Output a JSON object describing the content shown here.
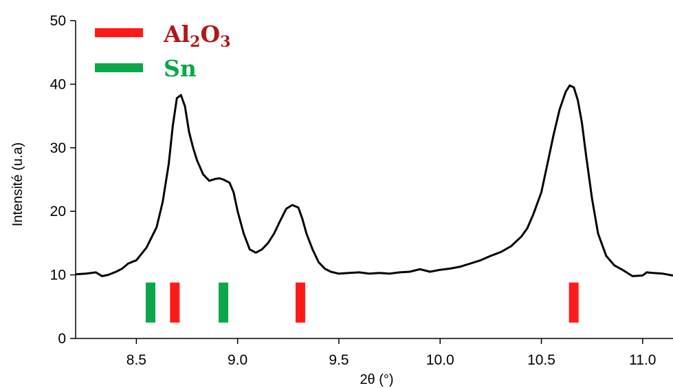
{
  "chart_data": {
    "type": "line",
    "xlabel": "2θ (°)",
    "ylabel": "Intensité (u.a)",
    "xlim": [
      8.2,
      11.15
    ],
    "ylim": [
      0,
      50
    ],
    "xticks": [
      8.5,
      9.0,
      9.5,
      10.0,
      10.5,
      11.0
    ],
    "xtick_labels": [
      "8.5",
      "9.0",
      "9.5",
      "10.0",
      "10.5",
      "11.0"
    ],
    "yticks": [
      0,
      10,
      20,
      30,
      40,
      50
    ],
    "ytick_labels": [
      "0",
      "10",
      "20",
      "30",
      "40",
      "50"
    ],
    "grid": false,
    "legend_position": "top-left",
    "legend": [
      {
        "label_main": "Al",
        "sub1": "2",
        "mid": "O",
        "sub2": "3",
        "color": "#ff1a1a",
        "text_color": "#b01818"
      },
      {
        "label_main": "Sn",
        "color": "#0aa84a",
        "text_color": "#0aa84a"
      }
    ],
    "series": [
      {
        "color": "#000000",
        "x": [
          8.2,
          8.25,
          8.3,
          8.33,
          8.36,
          8.4,
          8.43,
          8.46,
          8.5,
          8.55,
          8.6,
          8.63,
          8.66,
          8.68,
          8.7,
          8.72,
          8.74,
          8.76,
          8.78,
          8.8,
          8.83,
          8.86,
          8.89,
          8.91,
          8.93,
          8.96,
          8.98,
          9.0,
          9.03,
          9.06,
          9.09,
          9.12,
          9.15,
          9.18,
          9.21,
          9.24,
          9.27,
          9.3,
          9.32,
          9.34,
          9.37,
          9.4,
          9.43,
          9.46,
          9.5,
          9.55,
          9.6,
          9.65,
          9.7,
          9.75,
          9.8,
          9.85,
          9.9,
          9.95,
          10.0,
          10.05,
          10.1,
          10.15,
          10.2,
          10.25,
          10.3,
          10.35,
          10.4,
          10.43,
          10.46,
          10.5,
          10.53,
          10.56,
          10.59,
          10.62,
          10.64,
          10.66,
          10.68,
          10.7,
          10.72,
          10.75,
          10.78,
          10.82,
          10.86,
          10.9,
          10.95,
          11.0,
          11.02,
          11.05,
          11.1,
          11.15
        ],
        "y": [
          10.1,
          10.2,
          10.4,
          9.8,
          10.0,
          10.5,
          11.0,
          11.8,
          12.3,
          14.3,
          17.5,
          21.5,
          27.5,
          33.5,
          37.8,
          38.3,
          36.5,
          32.5,
          30.0,
          28.0,
          25.8,
          24.8,
          25.1,
          25.2,
          25.0,
          24.5,
          23.0,
          20.0,
          16.5,
          14.0,
          13.5,
          14.0,
          15.0,
          16.5,
          18.5,
          20.4,
          21.0,
          20.6,
          18.8,
          16.5,
          14.0,
          12.0,
          11.0,
          10.5,
          10.2,
          10.3,
          10.4,
          10.2,
          10.3,
          10.2,
          10.4,
          10.5,
          10.9,
          10.5,
          10.8,
          11.0,
          11.3,
          11.8,
          12.3,
          13.0,
          13.6,
          14.5,
          16.0,
          17.3,
          19.5,
          23.0,
          27.5,
          32.0,
          36.0,
          38.8,
          39.8,
          39.5,
          37.5,
          34.0,
          29.0,
          22.0,
          16.5,
          13.0,
          11.5,
          10.8,
          9.8,
          9.9,
          10.4,
          10.3,
          10.2,
          9.9
        ]
      }
    ],
    "reference_lines": [
      {
        "phase": "Sn",
        "x": 8.57,
        "color": "#0aa84a"
      },
      {
        "phase": "Al2O3",
        "x": 8.69,
        "color": "#ff1a1a"
      },
      {
        "phase": "Sn",
        "x": 8.93,
        "color": "#0aa84a"
      },
      {
        "phase": "Al2O3",
        "x": 9.31,
        "color": "#ff1a1a"
      },
      {
        "phase": "Al2O3",
        "x": 10.66,
        "color": "#ff1a1a"
      }
    ],
    "reference_line_y_range": [
      2.5,
      8.8
    ]
  }
}
